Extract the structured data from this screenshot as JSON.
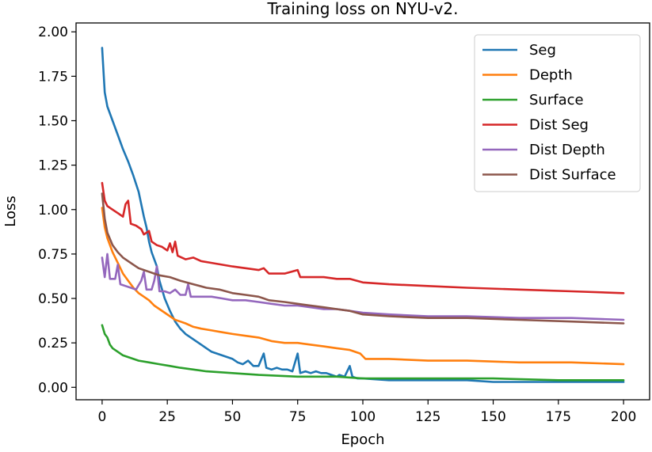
{
  "chart_data": {
    "type": "line",
    "title": "Training loss on NYU-v2.",
    "xlabel": "Epoch",
    "ylabel": "Loss",
    "xlim": [
      -10,
      210
    ],
    "ylim": [
      -0.07,
      2.05
    ],
    "xticks": [
      0,
      25,
      50,
      75,
      100,
      125,
      150,
      175,
      200
    ],
    "xtick_labels": [
      "0",
      "25",
      "50",
      "75",
      "100",
      "125",
      "150",
      "175",
      "200"
    ],
    "yticks": [
      0.0,
      0.25,
      0.5,
      0.75,
      1.0,
      1.25,
      1.5,
      1.75,
      2.0
    ],
    "ytick_labels": [
      "0.00",
      "0.25",
      "0.50",
      "0.75",
      "1.00",
      "1.25",
      "1.50",
      "1.75",
      "2.00"
    ],
    "grid": false,
    "legend_position": "top-right",
    "series": [
      {
        "name": "Seg",
        "color": "#1f77b4",
        "points": [
          [
            0,
            1.91
          ],
          [
            1,
            1.66
          ],
          [
            2,
            1.58
          ],
          [
            4,
            1.5
          ],
          [
            6,
            1.42
          ],
          [
            8,
            1.34
          ],
          [
            10,
            1.27
          ],
          [
            12,
            1.19
          ],
          [
            14,
            1.1
          ],
          [
            16,
            0.96
          ],
          [
            17,
            0.9
          ],
          [
            18,
            0.82
          ],
          [
            19,
            0.76
          ],
          [
            20,
            0.72
          ],
          [
            21,
            0.68
          ],
          [
            22,
            0.6
          ],
          [
            24,
            0.5
          ],
          [
            26,
            0.43
          ],
          [
            28,
            0.37
          ],
          [
            30,
            0.33
          ],
          [
            32,
            0.3
          ],
          [
            34,
            0.28
          ],
          [
            36,
            0.26
          ],
          [
            38,
            0.24
          ],
          [
            40,
            0.22
          ],
          [
            42,
            0.2
          ],
          [
            44,
            0.19
          ],
          [
            46,
            0.18
          ],
          [
            48,
            0.17
          ],
          [
            50,
            0.16
          ],
          [
            52,
            0.14
          ],
          [
            54,
            0.13
          ],
          [
            56,
            0.15
          ],
          [
            58,
            0.12
          ],
          [
            60,
            0.12
          ],
          [
            62,
            0.19
          ],
          [
            63,
            0.11
          ],
          [
            65,
            0.1
          ],
          [
            67,
            0.11
          ],
          [
            69,
            0.1
          ],
          [
            71,
            0.1
          ],
          [
            73,
            0.09
          ],
          [
            75,
            0.19
          ],
          [
            76,
            0.08
          ],
          [
            78,
            0.09
          ],
          [
            80,
            0.08
          ],
          [
            82,
            0.09
          ],
          [
            84,
            0.08
          ],
          [
            86,
            0.08
          ],
          [
            88,
            0.07
          ],
          [
            90,
            0.06
          ],
          [
            91,
            0.07
          ],
          [
            93,
            0.06
          ],
          [
            95,
            0.12
          ],
          [
            96,
            0.06
          ],
          [
            98,
            0.05
          ],
          [
            100,
            0.05
          ],
          [
            110,
            0.04
          ],
          [
            125,
            0.04
          ],
          [
            140,
            0.04
          ],
          [
            150,
            0.03
          ],
          [
            160,
            0.03
          ],
          [
            175,
            0.03
          ],
          [
            190,
            0.03
          ],
          [
            200,
            0.03
          ]
        ]
      },
      {
        "name": "Depth",
        "color": "#ff7f0e",
        "points": [
          [
            0,
            1.01
          ],
          [
            1,
            0.9
          ],
          [
            2,
            0.84
          ],
          [
            4,
            0.76
          ],
          [
            6,
            0.7
          ],
          [
            8,
            0.64
          ],
          [
            10,
            0.6
          ],
          [
            12,
            0.56
          ],
          [
            14,
            0.53
          ],
          [
            16,
            0.51
          ],
          [
            18,
            0.49
          ],
          [
            20,
            0.46
          ],
          [
            22,
            0.44
          ],
          [
            24,
            0.42
          ],
          [
            26,
            0.4
          ],
          [
            28,
            0.38
          ],
          [
            30,
            0.37
          ],
          [
            32,
            0.36
          ],
          [
            35,
            0.34
          ],
          [
            38,
            0.33
          ],
          [
            42,
            0.32
          ],
          [
            46,
            0.31
          ],
          [
            50,
            0.3
          ],
          [
            55,
            0.29
          ],
          [
            60,
            0.28
          ],
          [
            65,
            0.26
          ],
          [
            70,
            0.25
          ],
          [
            75,
            0.25
          ],
          [
            80,
            0.24
          ],
          [
            85,
            0.23
          ],
          [
            90,
            0.22
          ],
          [
            95,
            0.21
          ],
          [
            99,
            0.19
          ],
          [
            101,
            0.16
          ],
          [
            110,
            0.16
          ],
          [
            125,
            0.15
          ],
          [
            140,
            0.15
          ],
          [
            160,
            0.14
          ],
          [
            180,
            0.14
          ],
          [
            200,
            0.13
          ]
        ]
      },
      {
        "name": "Surface",
        "color": "#2ca02c",
        "points": [
          [
            0,
            0.35
          ],
          [
            1,
            0.3
          ],
          [
            2,
            0.28
          ],
          [
            3,
            0.24
          ],
          [
            4,
            0.22
          ],
          [
            6,
            0.2
          ],
          [
            8,
            0.18
          ],
          [
            10,
            0.17
          ],
          [
            14,
            0.15
          ],
          [
            18,
            0.14
          ],
          [
            22,
            0.13
          ],
          [
            26,
            0.12
          ],
          [
            30,
            0.11
          ],
          [
            35,
            0.1
          ],
          [
            40,
            0.09
          ],
          [
            50,
            0.08
          ],
          [
            60,
            0.07
          ],
          [
            75,
            0.06
          ],
          [
            90,
            0.06
          ],
          [
            100,
            0.05
          ],
          [
            125,
            0.05
          ],
          [
            150,
            0.05
          ],
          [
            175,
            0.04
          ],
          [
            200,
            0.04
          ]
        ]
      },
      {
        "name": "Dist Seg",
        "color": "#d62728",
        "points": [
          [
            0,
            1.15
          ],
          [
            1,
            1.05
          ],
          [
            2,
            1.02
          ],
          [
            4,
            1.0
          ],
          [
            6,
            0.98
          ],
          [
            8,
            0.96
          ],
          [
            9,
            1.03
          ],
          [
            10,
            1.05
          ],
          [
            11,
            0.92
          ],
          [
            13,
            0.91
          ],
          [
            15,
            0.89
          ],
          [
            16,
            0.86
          ],
          [
            18,
            0.88
          ],
          [
            19,
            0.82
          ],
          [
            21,
            0.8
          ],
          [
            23,
            0.79
          ],
          [
            25,
            0.77
          ],
          [
            26,
            0.81
          ],
          [
            27,
            0.76
          ],
          [
            28,
            0.82
          ],
          [
            29,
            0.74
          ],
          [
            32,
            0.72
          ],
          [
            35,
            0.73
          ],
          [
            38,
            0.71
          ],
          [
            42,
            0.7
          ],
          [
            46,
            0.69
          ],
          [
            50,
            0.68
          ],
          [
            55,
            0.67
          ],
          [
            60,
            0.66
          ],
          [
            62,
            0.67
          ],
          [
            64,
            0.64
          ],
          [
            70,
            0.64
          ],
          [
            75,
            0.66
          ],
          [
            76,
            0.62
          ],
          [
            80,
            0.62
          ],
          [
            85,
            0.62
          ],
          [
            90,
            0.61
          ],
          [
            95,
            0.61
          ],
          [
            100,
            0.59
          ],
          [
            110,
            0.58
          ],
          [
            125,
            0.57
          ],
          [
            140,
            0.56
          ],
          [
            160,
            0.55
          ],
          [
            180,
            0.54
          ],
          [
            200,
            0.53
          ]
        ]
      },
      {
        "name": "Dist Depth",
        "color": "#9467bd",
        "points": [
          [
            0,
            0.73
          ],
          [
            1,
            0.62
          ],
          [
            2,
            0.75
          ],
          [
            3,
            0.61
          ],
          [
            5,
            0.61
          ],
          [
            6,
            0.69
          ],
          [
            7,
            0.58
          ],
          [
            9,
            0.57
          ],
          [
            11,
            0.56
          ],
          [
            13,
            0.55
          ],
          [
            15,
            0.6
          ],
          [
            16,
            0.65
          ],
          [
            17,
            0.55
          ],
          [
            19,
            0.55
          ],
          [
            20,
            0.6
          ],
          [
            21,
            0.68
          ],
          [
            22,
            0.54
          ],
          [
            24,
            0.54
          ],
          [
            26,
            0.53
          ],
          [
            28,
            0.55
          ],
          [
            30,
            0.52
          ],
          [
            32,
            0.52
          ],
          [
            33,
            0.58
          ],
          [
            34,
            0.51
          ],
          [
            38,
            0.51
          ],
          [
            42,
            0.51
          ],
          [
            46,
            0.5
          ],
          [
            50,
            0.49
          ],
          [
            55,
            0.49
          ],
          [
            60,
            0.48
          ],
          [
            65,
            0.47
          ],
          [
            70,
            0.46
          ],
          [
            75,
            0.46
          ],
          [
            80,
            0.45
          ],
          [
            85,
            0.44
          ],
          [
            90,
            0.44
          ],
          [
            95,
            0.43
          ],
          [
            100,
            0.42
          ],
          [
            110,
            0.41
          ],
          [
            125,
            0.4
          ],
          [
            140,
            0.4
          ],
          [
            160,
            0.39
          ],
          [
            180,
            0.39
          ],
          [
            200,
            0.38
          ]
        ]
      },
      {
        "name": "Dist Surface",
        "color": "#8c564b",
        "points": [
          [
            0,
            1.09
          ],
          [
            1,
            0.95
          ],
          [
            2,
            0.87
          ],
          [
            4,
            0.8
          ],
          [
            6,
            0.76
          ],
          [
            8,
            0.73
          ],
          [
            10,
            0.71
          ],
          [
            12,
            0.69
          ],
          [
            14,
            0.67
          ],
          [
            16,
            0.66
          ],
          [
            18,
            0.65
          ],
          [
            20,
            0.64
          ],
          [
            22,
            0.63
          ],
          [
            26,
            0.62
          ],
          [
            30,
            0.6
          ],
          [
            35,
            0.58
          ],
          [
            40,
            0.56
          ],
          [
            45,
            0.55
          ],
          [
            50,
            0.53
          ],
          [
            55,
            0.52
          ],
          [
            60,
            0.51
          ],
          [
            62,
            0.5
          ],
          [
            64,
            0.49
          ],
          [
            70,
            0.48
          ],
          [
            75,
            0.47
          ],
          [
            80,
            0.46
          ],
          [
            85,
            0.45
          ],
          [
            90,
            0.44
          ],
          [
            95,
            0.43
          ],
          [
            100,
            0.41
          ],
          [
            110,
            0.4
          ],
          [
            125,
            0.39
          ],
          [
            140,
            0.39
          ],
          [
            160,
            0.38
          ],
          [
            180,
            0.37
          ],
          [
            200,
            0.36
          ]
        ]
      }
    ]
  }
}
